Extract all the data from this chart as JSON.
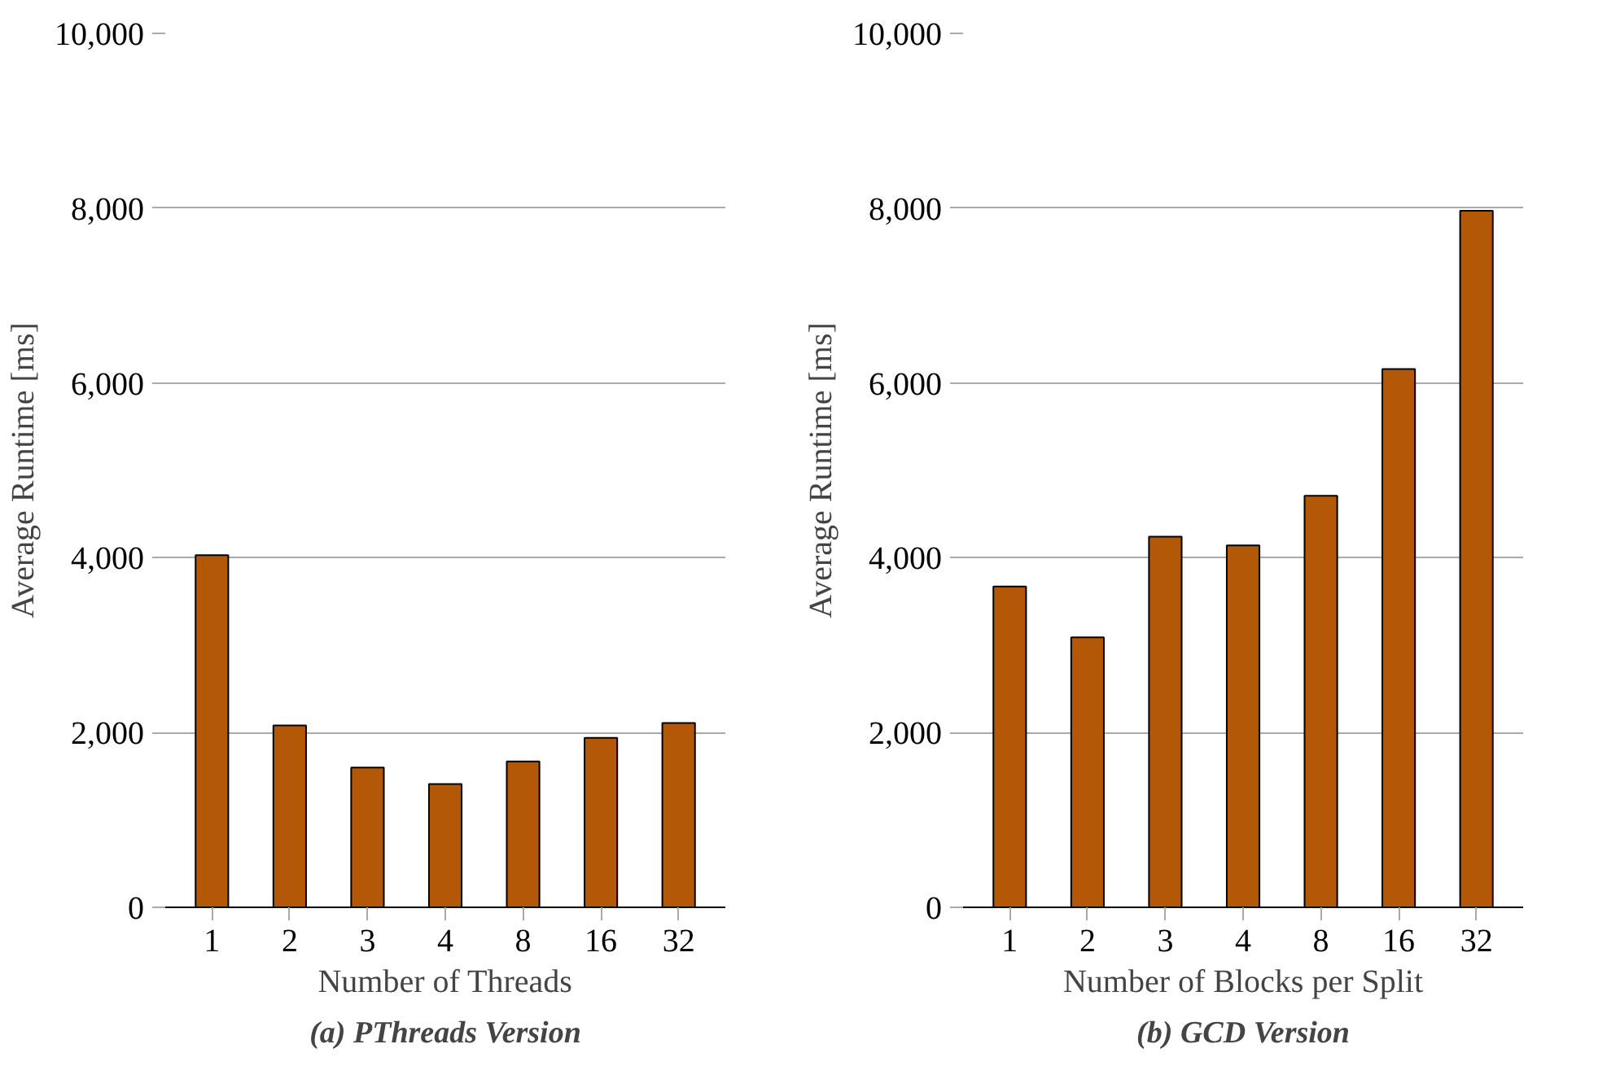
{
  "chart_data": [
    {
      "type": "bar",
      "title": "(a) PThreads Version",
      "xlabel": "Number of Threads",
      "ylabel": "Average Runtime [ms]",
      "categories": [
        "1",
        "2",
        "3",
        "4",
        "8",
        "16",
        "32"
      ],
      "values": [
        4030,
        2080,
        1600,
        1410,
        1670,
        1940,
        2110
      ],
      "color": "#b35806",
      "ylim": [
        0,
        10000
      ],
      "yticks": [
        {
          "value": 0,
          "label": "0"
        },
        {
          "value": 2000,
          "label": "2,000"
        },
        {
          "value": 4000,
          "label": "4,000"
        },
        {
          "value": 6000,
          "label": "6,000"
        },
        {
          "value": 8000,
          "label": "8,000"
        },
        {
          "value": 10000,
          "label": "10,000"
        }
      ],
      "grid": "y"
    },
    {
      "type": "bar",
      "title": "(b) GCD Version",
      "xlabel": "Number of Blocks per Split",
      "ylabel": "Average Runtime [ms]",
      "categories": [
        "1",
        "2",
        "3",
        "4",
        "8",
        "16",
        "32"
      ],
      "values": [
        3670,
        3090,
        4240,
        4140,
        4710,
        6160,
        7970
      ],
      "color": "#b35806",
      "ylim": [
        0,
        10000
      ],
      "yticks": [
        {
          "value": 0,
          "label": "0"
        },
        {
          "value": 2000,
          "label": "2,000"
        },
        {
          "value": 4000,
          "label": "4,000"
        },
        {
          "value": 6000,
          "label": "6,000"
        },
        {
          "value": 8000,
          "label": "8,000"
        },
        {
          "value": 10000,
          "label": "10,000"
        }
      ],
      "grid": "y"
    }
  ]
}
